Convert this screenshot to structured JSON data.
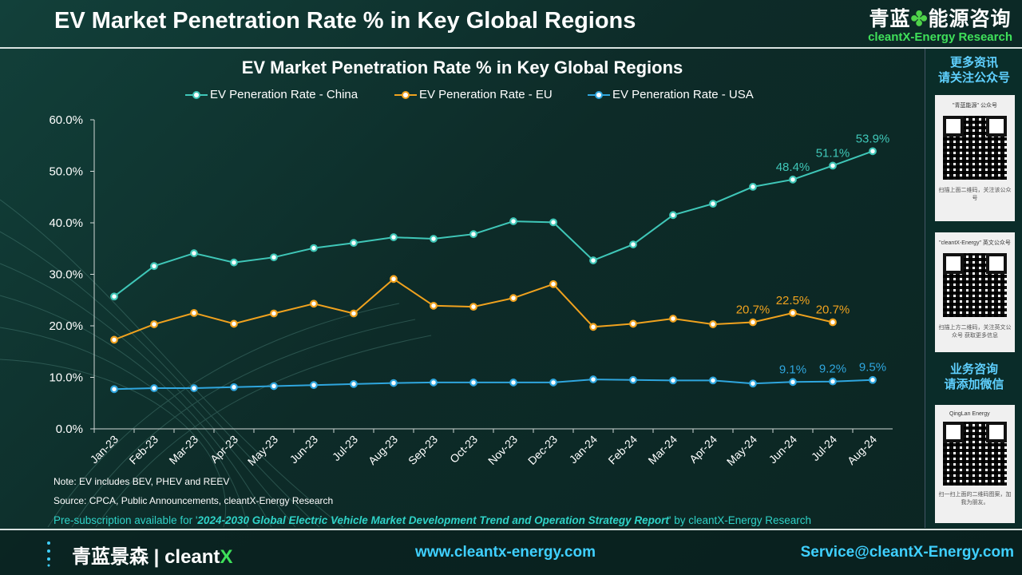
{
  "header": {
    "title": "EV Market Penetration Rate % in Key Global Regions",
    "brand_cn_left": "青蓝",
    "brand_cn_icon": "✤",
    "brand_cn_right": "能源咨询",
    "brand_en": "cleantX-Energy Research"
  },
  "sidebar": {
    "heading_1": "更多资讯",
    "heading_2": "请关注公众号",
    "card1_caption": "\"青蓝能源\" 公众号",
    "card1_foot": "扫描上面二维码，关注该公众号",
    "card2_caption": "\"cleantX-Energy\" 英文公众号",
    "card2_foot": "扫描上方二维码，关注英文公众号 获取更多信息",
    "heading_3": "业务咨询",
    "heading_4": "请添加微信",
    "card3_caption": "QingLan Energy",
    "card3_foot": "扫一扫上面的二维码图案，加我为朋友。"
  },
  "notes": {
    "note": "Note: EV  includes BEV, PHEV and REEV",
    "source": "Source: CPCA,  Public Announcements,  cleantX-Energy  Research",
    "pre_a": "Pre-subscription available for '",
    "pre_report": "2024-2030  Global Electric Vehicle Market Development Trend and Operation Strategy Report",
    "pre_b": "' by cleantX-Energy Research"
  },
  "footer": {
    "logo_cn": "青蓝景森",
    "logo_sep": "|",
    "logo_en": "cleant",
    "logo_x": "X",
    "website": "www.cleantx-energy.com",
    "email": "Service@cleantX-Energy.com"
  },
  "colors": {
    "china": "#3fc7b8",
    "eu": "#f0a21e",
    "usa": "#2fa6de",
    "accent_green": "#3fe05a",
    "accent_blue": "#3fd0ff"
  },
  "chart_data": {
    "type": "line",
    "title": "EV Market Penetration Rate %  in Key Global Regions",
    "categories": [
      "Jan-23",
      "Feb-23",
      "Mar-23",
      "Apr-23",
      "May-23",
      "Jun-23",
      "Jul-23",
      "Aug-23",
      "Sep-23",
      "Oct-23",
      "Nov-23",
      "Dec-23",
      "Jan-24",
      "Feb-24",
      "Mar-24",
      "Apr-24",
      "May-24",
      "Jun-24",
      "Jul-24",
      "Aug-24"
    ],
    "ylim": [
      0,
      60
    ],
    "yticks": [
      "0.0%",
      "10.0%",
      "20.0%",
      "30.0%",
      "40.0%",
      "50.0%",
      "60.0%"
    ],
    "legend_position": "top",
    "grid": false,
    "series": [
      {
        "name": "EV Peneration Rate - China",
        "color": "#3fc7b8",
        "values": [
          25.7,
          31.6,
          34.1,
          32.3,
          33.3,
          35.1,
          36.1,
          37.2,
          36.9,
          37.8,
          40.3,
          40.1,
          32.7,
          35.8,
          41.5,
          43.7,
          47.0,
          48.4,
          51.1,
          53.9
        ],
        "labels": [
          null,
          null,
          null,
          null,
          null,
          null,
          null,
          null,
          null,
          null,
          null,
          null,
          null,
          null,
          null,
          null,
          null,
          "48.4%",
          "51.1%",
          "53.9%"
        ]
      },
      {
        "name": "EV Peneration Rate - EU",
        "color": "#f0a21e",
        "values": [
          17.3,
          20.3,
          22.5,
          20.4,
          22.4,
          24.3,
          22.4,
          29.1,
          23.9,
          23.7,
          25.4,
          28.1,
          19.8,
          20.4,
          21.4,
          20.3,
          20.7,
          22.5,
          20.7,
          null
        ],
        "labels": [
          null,
          null,
          null,
          null,
          null,
          null,
          null,
          null,
          null,
          null,
          null,
          null,
          null,
          null,
          null,
          null,
          "20.7%",
          "22.5%",
          "20.7%",
          null
        ]
      },
      {
        "name": "EV Peneration Rate - USA",
        "color": "#2fa6de",
        "values": [
          7.7,
          7.9,
          7.9,
          8.1,
          8.3,
          8.5,
          8.7,
          8.9,
          9.0,
          9.0,
          9.0,
          9.0,
          9.6,
          9.5,
          9.4,
          9.4,
          8.8,
          9.1,
          9.2,
          9.5
        ],
        "labels": [
          null,
          null,
          null,
          null,
          null,
          null,
          null,
          null,
          null,
          null,
          null,
          null,
          null,
          null,
          null,
          null,
          null,
          "9.1%",
          "9.2%",
          "9.5%"
        ]
      }
    ]
  }
}
